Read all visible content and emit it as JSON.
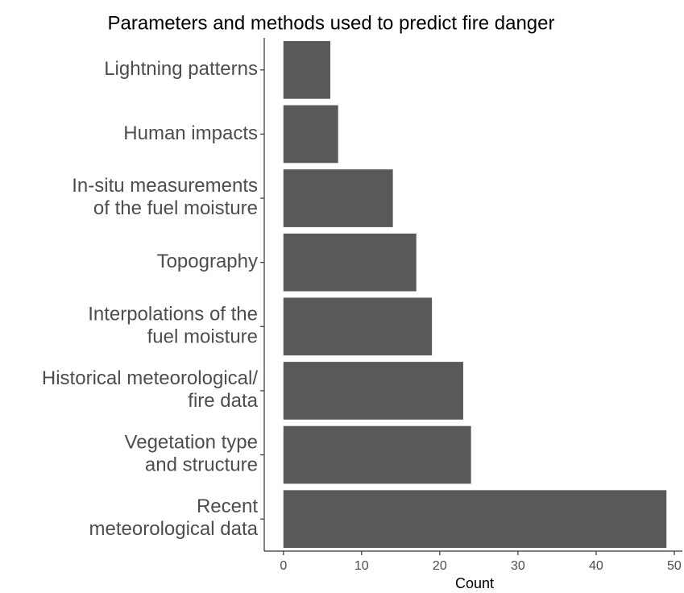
{
  "chart_data": {
    "type": "bar",
    "orientation": "horizontal",
    "title": "Parameters and methods used to predict fire danger",
    "x_label": "Count",
    "categories": [
      "Lightning patterns",
      "Human impacts",
      "In-situ measurements\nof the fuel moisture",
      "Topography",
      "Interpolations of the\nfuel moisture",
      "Historical meteorological/\nfire data",
      "Vegetation type\nand structure",
      "Recent\nmeteorological data"
    ],
    "values": [
      6,
      7,
      14,
      17,
      19,
      23,
      24,
      49
    ],
    "color": "#595959",
    "xlim": [
      -2.45,
      51.45
    ],
    "xticks": [
      0,
      10,
      20,
      30,
      40,
      50
    ],
    "grid": false
  }
}
